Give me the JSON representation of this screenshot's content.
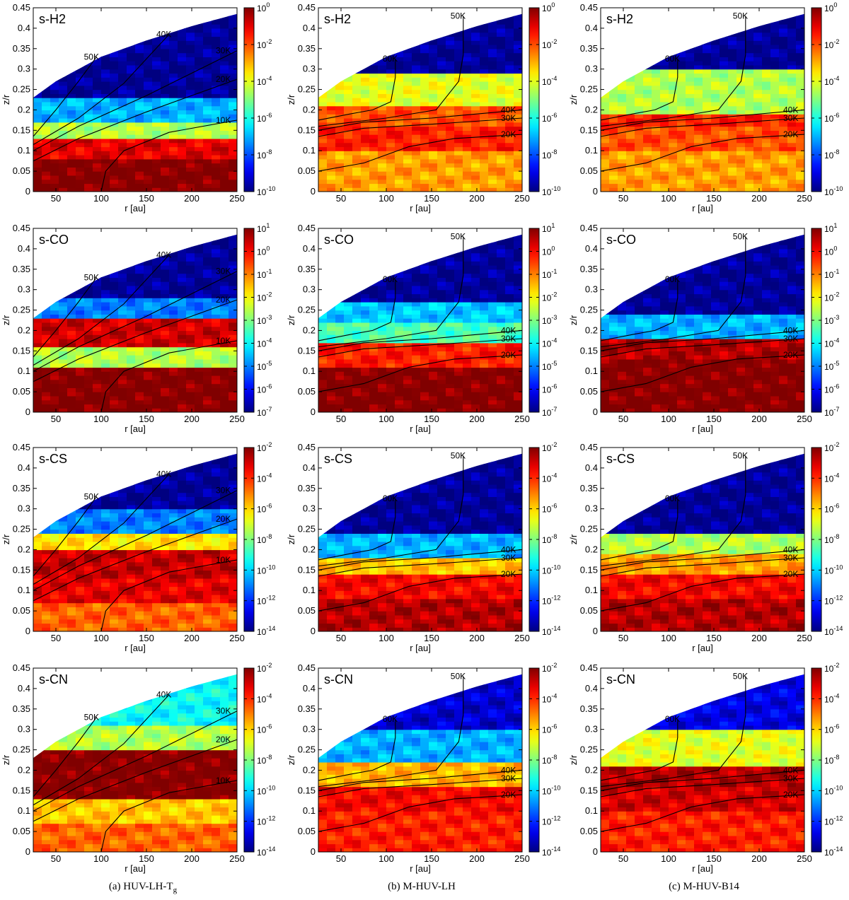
{
  "chart_data": {
    "type": "heatmap",
    "x": {
      "label": "r [au]",
      "range": [
        25,
        250
      ],
      "ticks": [
        50,
        100,
        150,
        200,
        250
      ]
    },
    "y": {
      "label": "z/r",
      "range": [
        0,
        0.45
      ],
      "ticks": [
        "0",
        "0.05",
        "0.1",
        "0.15",
        "0.2",
        "0.25",
        "0.3",
        "0.35",
        "0.4",
        "0.45"
      ]
    },
    "disk_surface_zr": [
      [
        25,
        0.23
      ],
      [
        50,
        0.27
      ],
      [
        100,
        0.33
      ],
      [
        150,
        0.37
      ],
      [
        200,
        0.405
      ],
      [
        250,
        0.435
      ]
    ],
    "rows": [
      {
        "species": "s-H2",
        "colorbar": {
          "min_exp": -10,
          "max_exp": 0,
          "ticks": [
            0,
            -2,
            -4,
            -6,
            -8,
            -10
          ]
        }
      },
      {
        "species": "s-CO",
        "colorbar": {
          "min_exp": -7,
          "max_exp": 1,
          "ticks": [
            1,
            0,
            -1,
            -2,
            -3,
            -4,
            -5,
            -6,
            -7
          ]
        }
      },
      {
        "species": "s-CS",
        "colorbar": {
          "min_exp": -14,
          "max_exp": -2,
          "ticks": [
            -2,
            -4,
            -6,
            -8,
            -10,
            -12,
            -14
          ]
        }
      },
      {
        "species": "s-CN",
        "colorbar": {
          "min_exp": -14,
          "max_exp": -2,
          "ticks": [
            -2,
            -4,
            -6,
            -8,
            -10,
            -12,
            -14
          ]
        }
      }
    ],
    "columns": [
      {
        "model": "HUV-LH-Tg",
        "caption_main": "(a) HUV-LH-T",
        "caption_sub": "g",
        "isotherms": [
          {
            "label": "50K",
            "points": [
              [
                25,
                0.135
              ],
              [
                50,
                0.2
              ],
              [
                75,
                0.27
              ],
              [
                95,
                0.33
              ]
            ]
          },
          {
            "label": "40K",
            "points": [
              [
                25,
                0.115
              ],
              [
                75,
                0.18
              ],
              [
                125,
                0.265
              ],
              [
                175,
                0.385
              ]
            ]
          },
          {
            "label": "30K",
            "points": [
              [
                25,
                0.1
              ],
              [
                75,
                0.16
              ],
              [
                150,
                0.235
              ],
              [
                250,
                0.345
              ]
            ]
          },
          {
            "label": "20K",
            "points": [
              [
                25,
                0.075
              ],
              [
                75,
                0.13
              ],
              [
                150,
                0.195
              ],
              [
                250,
                0.275
              ]
            ]
          },
          {
            "label": "10K",
            "points": [
              [
                100,
                0
              ],
              [
                105,
                0.05
              ],
              [
                125,
                0.1
              ],
              [
                175,
                0.145
              ],
              [
                250,
                0.175
              ]
            ]
          }
        ]
      },
      {
        "model": "M-HUV-LH",
        "caption_main": "(b) M-HUV-LH",
        "caption_sub": "",
        "isotherms": [
          {
            "label": "60K",
            "points": [
              [
                110,
                0.325
              ],
              [
                110,
                0.28
              ],
              [
                105,
                0.22
              ],
              [
                85,
                0.2
              ],
              [
                60,
                0.19
              ],
              [
                25,
                0.175
              ]
            ]
          },
          {
            "label": "50K",
            "points": [
              [
                185,
                0.43
              ],
              [
                185,
                0.335
              ],
              [
                180,
                0.27
              ],
              [
                155,
                0.2
              ],
              [
                100,
                0.18
              ],
              [
                25,
                0.16
              ]
            ]
          },
          {
            "label": "40K",
            "points": [
              [
                25,
                0.15
              ],
              [
                75,
                0.17
              ],
              [
                150,
                0.18
              ],
              [
                250,
                0.2
              ]
            ]
          },
          {
            "label": "30K",
            "points": [
              [
                25,
                0.135
              ],
              [
                75,
                0.155
              ],
              [
                150,
                0.165
              ],
              [
                250,
                0.18
              ]
            ]
          },
          {
            "label": "20K",
            "points": [
              [
                25,
                0.05
              ],
              [
                75,
                0.07
              ],
              [
                125,
                0.11
              ],
              [
                175,
                0.13
              ],
              [
                250,
                0.14
              ]
            ]
          }
        ]
      },
      {
        "model": "M-HUV-B14",
        "caption_main": "(c) M-HUV-B14",
        "caption_sub": "",
        "isotherms": [
          {
            "label": "60K",
            "points": [
              [
                110,
                0.325
              ],
              [
                110,
                0.28
              ],
              [
                105,
                0.22
              ],
              [
                85,
                0.2
              ],
              [
                60,
                0.19
              ],
              [
                25,
                0.175
              ]
            ]
          },
          {
            "label": "50K",
            "points": [
              [
                185,
                0.43
              ],
              [
                185,
                0.335
              ],
              [
                180,
                0.27
              ],
              [
                155,
                0.2
              ],
              [
                100,
                0.18
              ],
              [
                25,
                0.16
              ]
            ]
          },
          {
            "label": "40K",
            "points": [
              [
                25,
                0.15
              ],
              [
                75,
                0.17
              ],
              [
                150,
                0.18
              ],
              [
                250,
                0.2
              ]
            ]
          },
          {
            "label": "30K",
            "points": [
              [
                25,
                0.135
              ],
              [
                75,
                0.155
              ],
              [
                150,
                0.165
              ],
              [
                250,
                0.18
              ]
            ]
          },
          {
            "label": "20K",
            "points": [
              [
                25,
                0.05
              ],
              [
                75,
                0.07
              ],
              [
                125,
                0.11
              ],
              [
                175,
                0.13
              ],
              [
                250,
                0.14
              ]
            ]
          }
        ]
      }
    ],
    "bands": {
      "HUV-LH-Tg": {
        "s-H2": [
          [
            0,
            0.08,
            1.0
          ],
          [
            0.08,
            0.13,
            0.9
          ],
          [
            0.13,
            0.17,
            0.55
          ],
          [
            0.17,
            0.23,
            0.3
          ],
          [
            0.23,
            1,
            0.02
          ]
        ],
        "s-CO": [
          [
            0,
            0.11,
            1.0
          ],
          [
            0.11,
            0.16,
            0.55
          ],
          [
            0.16,
            0.23,
            0.92
          ],
          [
            0.23,
            0.28,
            0.25
          ],
          [
            0.28,
            1,
            0.02
          ]
        ],
        "s-CS": [
          [
            0,
            0.07,
            0.78
          ],
          [
            0.07,
            0.13,
            0.9
          ],
          [
            0.13,
            0.2,
            0.93
          ],
          [
            0.2,
            0.24,
            0.65
          ],
          [
            0.24,
            0.3,
            0.25
          ],
          [
            0.3,
            1,
            0.02
          ]
        ],
        "s-CN": [
          [
            0,
            0.07,
            0.78
          ],
          [
            0.07,
            0.13,
            0.68
          ],
          [
            0.13,
            0.25,
            1.0
          ],
          [
            0.25,
            0.31,
            0.55
          ],
          [
            0.31,
            1,
            0.38
          ]
        ]
      },
      "M-HUV-LH": {
        "s-H2": [
          [
            0,
            0.1,
            0.72
          ],
          [
            0.1,
            0.16,
            0.85
          ],
          [
            0.16,
            0.21,
            0.8
          ],
          [
            0.21,
            0.29,
            0.6
          ],
          [
            0.29,
            1,
            0.02
          ]
        ],
        "s-CO": [
          [
            0,
            0.11,
            1.0
          ],
          [
            0.11,
            0.17,
            0.85
          ],
          [
            0.17,
            0.22,
            0.45
          ],
          [
            0.22,
            0.27,
            0.32
          ],
          [
            0.27,
            1,
            0.02
          ]
        ],
        "s-CS": [
          [
            0,
            0.08,
            0.95
          ],
          [
            0.08,
            0.14,
            0.88
          ],
          [
            0.14,
            0.18,
            0.68
          ],
          [
            0.18,
            0.24,
            0.3
          ],
          [
            0.24,
            1,
            0.02
          ]
        ],
        "s-CN": [
          [
            0,
            0.1,
            0.85
          ],
          [
            0.1,
            0.16,
            0.88
          ],
          [
            0.16,
            0.22,
            0.7
          ],
          [
            0.22,
            0.3,
            0.3
          ],
          [
            0.3,
            1,
            0.08
          ]
        ]
      },
      "M-HUV-B14": {
        "s-H2": [
          [
            0,
            0.1,
            0.72
          ],
          [
            0.1,
            0.16,
            0.8
          ],
          [
            0.16,
            0.19,
            0.85
          ],
          [
            0.19,
            0.3,
            0.55
          ],
          [
            0.3,
            1,
            0.02
          ]
        ],
        "s-CO": [
          [
            0,
            0.13,
            1.0
          ],
          [
            0.13,
            0.18,
            0.95
          ],
          [
            0.18,
            0.24,
            0.3
          ],
          [
            0.24,
            1,
            0.02
          ]
        ],
        "s-CS": [
          [
            0,
            0.08,
            0.95
          ],
          [
            0.08,
            0.14,
            0.88
          ],
          [
            0.14,
            0.19,
            0.72
          ],
          [
            0.19,
            0.24,
            0.55
          ],
          [
            0.24,
            1,
            0.02
          ]
        ],
        "s-CN": [
          [
            0,
            0.1,
            0.85
          ],
          [
            0.1,
            0.16,
            0.92
          ],
          [
            0.16,
            0.21,
            0.95
          ],
          [
            0.21,
            0.3,
            0.6
          ],
          [
            0.3,
            1,
            0.1
          ]
        ]
      }
    }
  }
}
